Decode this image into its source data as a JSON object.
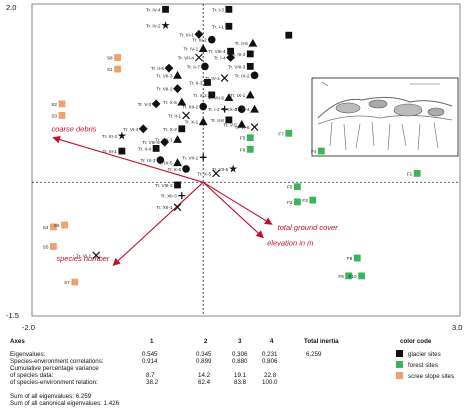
{
  "chart_data": {
    "type": "scatter",
    "title": "",
    "xlim": [
      -2.0,
      3.0
    ],
    "ylim": [
      -1.5,
      2.0
    ],
    "axis_labels": {
      "x_min": "-2.0",
      "x_max": "3.0",
      "y_max": "2.0",
      "y_min": "-1.5"
    },
    "grid": false,
    "legend": {
      "position": "bottom-right",
      "title": "color code",
      "entries": [
        {
          "name": "glacier sites",
          "color": "#111111"
        },
        {
          "name": "forest sites",
          "color": "#3cb45a"
        },
        {
          "name": "scree slope sites",
          "color": "#f0a070"
        }
      ]
    },
    "environment_vectors": [
      {
        "name": "coarse debris",
        "x": -1.75,
        "y": 0.5
      },
      {
        "name": "total ground cover",
        "x": 0.8,
        "y": -0.47
      },
      {
        "name": "elevation in m",
        "x": 0.7,
        "y": -0.62
      },
      {
        "name": "species number",
        "x": -1.05,
        "y": -0.93
      }
    ],
    "series": [
      {
        "name": "glacier sites",
        "color": "#111111",
        "points": [
          {
            "label": "Tr. IV-4",
            "x": -0.44,
            "y": 1.94,
            "marker": "square"
          },
          {
            "label": "Tr. IV-2",
            "x": -0.44,
            "y": 1.76,
            "marker": "star"
          },
          {
            "label": "Tr. I-3",
            "x": 0.3,
            "y": 1.94,
            "marker": "square"
          },
          {
            "label": "Tr. I-1",
            "x": 0.3,
            "y": 1.75,
            "marker": "square"
          },
          {
            "label": "",
            "x": 1.0,
            "y": 1.65,
            "marker": "square"
          },
          {
            "label": "Tr. III-1",
            "x": -0.05,
            "y": 1.66,
            "marker": "diamond"
          },
          {
            "label": "Tr. III-2",
            "x": 0.1,
            "y": 1.6,
            "marker": "circle"
          },
          {
            "label": "Tr. II-6",
            "x": 0.58,
            "y": 1.56,
            "marker": "triangle"
          },
          {
            "label": "Tr. VIII-4",
            "x": 0.32,
            "y": 1.47,
            "marker": "square"
          },
          {
            "label": "Tr. III-3",
            "x": 0.55,
            "y": 1.44,
            "marker": "square"
          },
          {
            "label": "Tr. IV-1",
            "x": 0.0,
            "y": 1.5,
            "marker": "triangle"
          },
          {
            "label": "Tr. VIII-3",
            "x": 0.55,
            "y": 1.3,
            "marker": "square"
          },
          {
            "label": "Tr. VII-4",
            "x": -0.05,
            "y": 1.4,
            "marker": "cross"
          },
          {
            "label": "Tr. I-4",
            "x": 0.32,
            "y": 1.4,
            "marker": "diamond"
          },
          {
            "label": "Tr. II-7",
            "x": 0.02,
            "y": 1.3,
            "marker": "circle"
          },
          {
            "label": "Tr. II-5",
            "x": -0.4,
            "y": 1.28,
            "marker": "diamond"
          },
          {
            "label": "Tr. VII-3",
            "x": -0.3,
            "y": 1.2,
            "marker": "triangle"
          },
          {
            "label": "Tr. VII-2",
            "x": -0.3,
            "y": 1.05,
            "marker": "diamond"
          },
          {
            "label": "Tr. IV-3",
            "x": 0.25,
            "y": 1.17,
            "marker": "cross"
          },
          {
            "label": "Tr. II-3",
            "x": 0.05,
            "y": 1.12,
            "marker": "square"
          },
          {
            "label": "Tr. IX-2",
            "x": 0.6,
            "y": 1.2,
            "marker": "circle"
          },
          {
            "label": "Tr. X-5",
            "x": -0.25,
            "y": 0.9,
            "marker": "triangle"
          },
          {
            "label": "Tr. X-3",
            "x": 0.1,
            "y": 0.98,
            "marker": "square"
          },
          {
            "label": "Tr. V-3",
            "x": -0.55,
            "y": 0.88,
            "marker": "diamond"
          },
          {
            "label": "Tr. VII-6",
            "x": 0.3,
            "y": 0.95,
            "marker": "triangle"
          },
          {
            "label": "Tr. IX-1",
            "x": 0.55,
            "y": 0.98,
            "marker": "triangle"
          },
          {
            "label": "Tr. XII-2",
            "x": 0.0,
            "y": 0.85,
            "marker": "circle"
          },
          {
            "label": "Tr. I-2",
            "x": 0.25,
            "y": 0.82,
            "marker": "plus"
          },
          {
            "label": "Tr. IX-4",
            "x": 0.45,
            "y": 0.82,
            "marker": "circle"
          },
          {
            "label": "Tr. III-4",
            "x": 0.6,
            "y": 0.82,
            "marker": "triangle"
          },
          {
            "label": "Tr. II-1",
            "x": -0.2,
            "y": 0.75,
            "marker": "cross"
          },
          {
            "label": "Tr. X-2",
            "x": -0.25,
            "y": 0.6,
            "marker": "square"
          },
          {
            "label": "Tr. X-1",
            "x": 0.0,
            "y": 0.68,
            "marker": "triangle"
          },
          {
            "label": "Tr. II-8",
            "x": 0.3,
            "y": 0.7,
            "marker": "square"
          },
          {
            "label": "Tr. VI-4",
            "x": -0.7,
            "y": 0.6,
            "marker": "diamond"
          },
          {
            "label": "Tr. V-5",
            "x": 0.45,
            "y": 0.65,
            "marker": "triangle"
          },
          {
            "label": "Tr. VI-6",
            "x": 0.6,
            "y": 0.62,
            "marker": "cross"
          },
          {
            "label": "Tr. XI-3",
            "x": -0.95,
            "y": 0.52,
            "marker": "star"
          },
          {
            "label": "Tr. III-1",
            "x": -0.95,
            "y": 0.35,
            "marker": "square"
          },
          {
            "label": "Tr. VIII-1",
            "x": -0.3,
            "y": 0.48,
            "marker": "triangle"
          },
          {
            "label": "Tr. VIII-5",
            "x": -0.45,
            "y": 0.45,
            "marker": "diamond"
          },
          {
            "label": "Tr. II-4",
            "x": -0.55,
            "y": 0.38,
            "marker": "square"
          },
          {
            "label": "Tr. IX-3",
            "x": -0.5,
            "y": 0.25,
            "marker": "circle"
          },
          {
            "label": "Tr. IX-5",
            "x": -0.3,
            "y": 0.22,
            "marker": "triangle"
          },
          {
            "label": "Tr. X-6",
            "x": -0.2,
            "y": 0.15,
            "marker": "circle"
          },
          {
            "label": "Tr. VII-1",
            "x": 0.0,
            "y": 0.28,
            "marker": "plus"
          },
          {
            "label": "Tr. VII-5",
            "x": 0.35,
            "y": 0.15,
            "marker": "star"
          },
          {
            "label": "Tr. X-5",
            "x": 0.15,
            "y": 0.1,
            "marker": "cross"
          },
          {
            "label": "Tr. VIII-2",
            "x": -0.3,
            "y": -0.03,
            "marker": "square"
          },
          {
            "label": "Tr. XII-3",
            "x": -0.25,
            "y": -0.15,
            "marker": "plus"
          },
          {
            "label": "Tr. XII-1",
            "x": -0.3,
            "y": -0.28,
            "marker": "cross"
          },
          {
            "label": "Tr. VI-1",
            "x": -1.25,
            "y": -0.82,
            "marker": "cross"
          }
        ]
      },
      {
        "name": "forest sites",
        "color": "#3cb45a",
        "points": [
          {
            "label": "F7",
            "x": 1.0,
            "y": 0.55
          },
          {
            "label": "F5",
            "x": 0.55,
            "y": 0.5
          },
          {
            "label": "F6",
            "x": 0.55,
            "y": 0.37
          },
          {
            "label": "F4",
            "x": 1.38,
            "y": 0.35
          },
          {
            "label": "F1",
            "x": 2.5,
            "y": 0.1
          },
          {
            "label": "F5",
            "x": 1.1,
            "y": -0.05
          },
          {
            "label": "F2",
            "x": 1.1,
            "y": -0.22
          },
          {
            "label": "F3",
            "x": 1.28,
            "y": -0.2
          },
          {
            "label": "F8",
            "x": 1.8,
            "y": -0.85
          },
          {
            "label": "F9",
            "x": 1.7,
            "y": -1.05
          },
          {
            "label": "F10",
            "x": 1.85,
            "y": -1.05
          }
        ]
      },
      {
        "name": "scree slope sites",
        "color": "#f0a070",
        "points": [
          {
            "label": "S8",
            "x": -1.0,
            "y": 1.4
          },
          {
            "label": "S1",
            "x": -1.0,
            "y": 1.27
          },
          {
            "label": "S2",
            "x": -1.65,
            "y": 0.88
          },
          {
            "label": "S3",
            "x": -1.65,
            "y": 0.75
          },
          {
            "label": "S4",
            "x": -1.75,
            "y": -0.5
          },
          {
            "label": "S6",
            "x": -1.62,
            "y": -0.48
          },
          {
            "label": "S5",
            "x": -1.75,
            "y": -0.72
          },
          {
            "label": "S7",
            "x": -1.5,
            "y": -1.12
          }
        ]
      }
    ]
  },
  "stats": {
    "axes_label": "Axes",
    "axis_numbers": [
      "1",
      "2",
      "3",
      "4"
    ],
    "total_inertia_label": "Total inertia",
    "rows": [
      {
        "label": "Eigenvalues:",
        "values": [
          "0.545",
          "0.345",
          "0.306",
          "0.231"
        ],
        "total": "6.259"
      },
      {
        "label": "Species-environment correlations:",
        "values": [
          "0.914",
          "0.899",
          "0.880",
          "0.806"
        ],
        "total": ""
      },
      {
        "label": "Cumulative percentage variance",
        "values": [
          "",
          "",
          "",
          ""
        ],
        "total": ""
      },
      {
        "label": "of species data:",
        "values": [
          "8.7",
          "14.2",
          "19.1",
          "22.8"
        ],
        "total": ""
      },
      {
        "label": "of species-environment relation:",
        "values": [
          "38.2",
          "62.4",
          "83.8",
          "100.0"
        ],
        "total": ""
      }
    ],
    "sum_all_eigen": "Sum of all eigenvalues: 6.259",
    "sum_canonical": "Sum of all canonical eigenvalues: 1.426"
  }
}
